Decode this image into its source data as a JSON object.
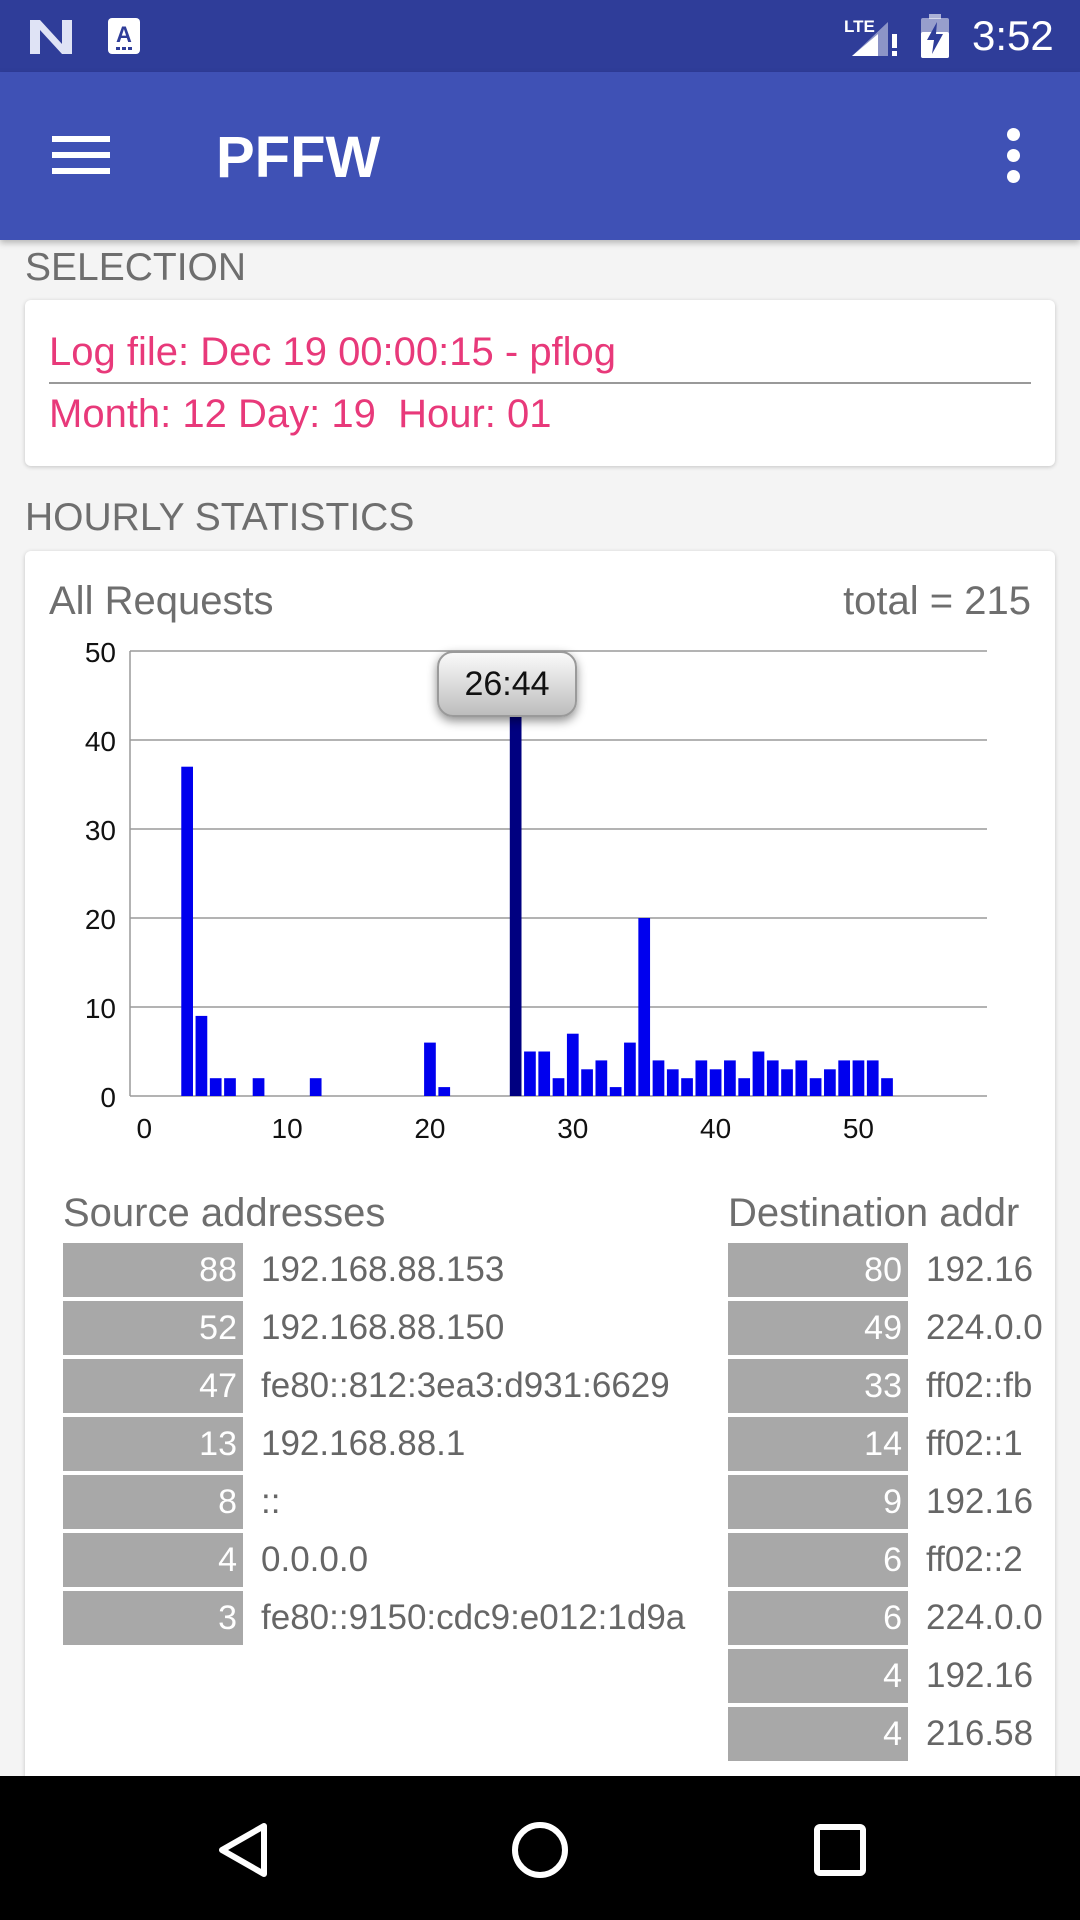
{
  "status_bar": {
    "time": "3:52",
    "network": "LTE",
    "icons": [
      "n-icon",
      "app-notification-icon",
      "signal-icon",
      "battery-charging-icon"
    ]
  },
  "app_bar": {
    "title": "PFFW",
    "icons": [
      "menu-icon",
      "more-vert-icon"
    ]
  },
  "selection": {
    "header": "SELECTION",
    "log_file": "Log file: Dec 19 00:00:15 - pflog",
    "date": "Month: 12 Day: 19  Hour: 01"
  },
  "hourly": {
    "header": "HOURLY STATISTICS",
    "chart_title": "All Requests",
    "total": "total = 215",
    "tooltip": "26:44"
  },
  "chart_data": {
    "type": "bar",
    "title": "All Requests",
    "xlabel": "",
    "ylabel": "",
    "xlim": [
      -1,
      59
    ],
    "ylim": [
      0,
      50
    ],
    "x_ticks": [
      0,
      10,
      20,
      30,
      40,
      50
    ],
    "y_ticks": [
      0,
      10,
      20,
      30,
      40,
      50
    ],
    "grid": true,
    "legend": "none",
    "colors": {
      "bar": "#0000ee",
      "highlight": "#000080"
    },
    "highlighted_x": 26,
    "x": [
      3,
      4,
      5,
      6,
      8,
      12,
      20,
      21,
      26,
      27,
      28,
      29,
      30,
      31,
      32,
      33,
      34,
      35,
      36,
      37,
      38,
      39,
      40,
      41,
      42,
      43,
      44,
      45,
      46,
      47,
      48,
      49,
      50,
      51,
      52
    ],
    "values": [
      37,
      9,
      2,
      2,
      2,
      2,
      6,
      1,
      44,
      5,
      5,
      2,
      7,
      3,
      4,
      1,
      6,
      20,
      4,
      3,
      2,
      4,
      3,
      4,
      2,
      5,
      4,
      3,
      4,
      2,
      3,
      4,
      4,
      4,
      2
    ]
  },
  "source_addresses": {
    "header": "Source addresses",
    "rows": [
      {
        "count": "88",
        "addr": "192.168.88.153"
      },
      {
        "count": "52",
        "addr": "192.168.88.150"
      },
      {
        "count": "47",
        "addr": "fe80::812:3ea3:d931:6629"
      },
      {
        "count": "13",
        "addr": "192.168.88.1"
      },
      {
        "count": "8",
        "addr": "::"
      },
      {
        "count": "4",
        "addr": "0.0.0.0"
      },
      {
        "count": "3",
        "addr": "fe80::9150:cdc9:e012:1d9a"
      }
    ]
  },
  "destination_addresses": {
    "header": "Destination addr",
    "rows": [
      {
        "count": "80",
        "addr": "192.16"
      },
      {
        "count": "49",
        "addr": "224.0.0"
      },
      {
        "count": "33",
        "addr": "ff02::fb"
      },
      {
        "count": "14",
        "addr": "ff02::1"
      },
      {
        "count": "9",
        "addr": "192.16"
      },
      {
        "count": "6",
        "addr": "ff02::2"
      },
      {
        "count": "6",
        "addr": "224.0.0"
      },
      {
        "count": "4",
        "addr": "192.16"
      },
      {
        "count": "4",
        "addr": "216.58"
      }
    ]
  },
  "nav_bar": {
    "icons": [
      "back-icon",
      "home-icon",
      "recents-icon"
    ]
  }
}
